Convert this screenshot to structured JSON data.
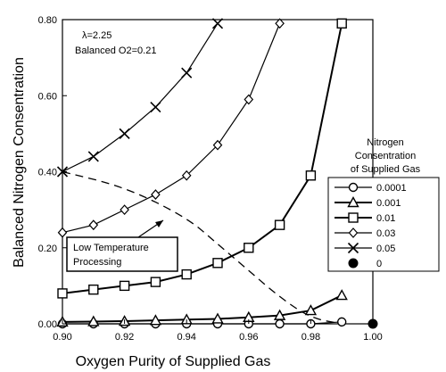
{
  "chart_data": {
    "type": "line",
    "xlabel": "Oxygen Purity of Supplied Gas",
    "ylabel": "Balanced Nitrogen Consentration",
    "xlim": [
      0.9,
      1.0
    ],
    "ylim": [
      0.0,
      0.8
    ],
    "xticks": [
      "0.90",
      "0.92",
      "0.94",
      "0.96",
      "0.98",
      "1.00"
    ],
    "yticks": [
      "0.00",
      "0.20",
      "0.40",
      "0.60",
      "0.80"
    ],
    "annotation": {
      "line1": "λ=2.25",
      "line2": "Balanced O2=0.21"
    },
    "callout": {
      "line1": "Low Temperature",
      "line2": "Processing"
    },
    "legend": {
      "title": [
        "Nitrogen",
        "Consentration",
        "of Supplied Gas"
      ],
      "placement": "right"
    },
    "series": [
      {
        "name": "0.0001",
        "marker": "circle-open",
        "color": "#000000",
        "x": [
          0.9,
          0.91,
          0.92,
          0.93,
          0.94,
          0.95,
          0.96,
          0.97,
          0.98,
          0.99
        ],
        "y": [
          0.0,
          0.0,
          0.0,
          0.0,
          0.0,
          0.0,
          0.0,
          0.0,
          0.0,
          0.005
        ]
      },
      {
        "name": "0.001",
        "marker": "triangle-open",
        "color": "#000000",
        "x": [
          0.9,
          0.91,
          0.92,
          0.93,
          0.94,
          0.95,
          0.96,
          0.97,
          0.98,
          0.99
        ],
        "y": [
          0.005,
          0.006,
          0.007,
          0.009,
          0.011,
          0.013,
          0.017,
          0.022,
          0.035,
          0.075
        ]
      },
      {
        "name": "0.01",
        "marker": "square-open",
        "color": "#000000",
        "x": [
          0.9,
          0.91,
          0.92,
          0.93,
          0.94,
          0.95,
          0.96,
          0.97,
          0.98,
          0.99
        ],
        "y": [
          0.08,
          0.09,
          0.1,
          0.11,
          0.13,
          0.16,
          0.2,
          0.26,
          0.39,
          0.79
        ]
      },
      {
        "name": "0.03",
        "marker": "diamond-open",
        "color": "#000000",
        "x": [
          0.9,
          0.91,
          0.92,
          0.93,
          0.94,
          0.95,
          0.96,
          0.97
        ],
        "y": [
          0.24,
          0.26,
          0.3,
          0.34,
          0.39,
          0.47,
          0.59,
          0.79
        ]
      },
      {
        "name": "0.05",
        "marker": "x",
        "color": "#000000",
        "x": [
          0.9,
          0.91,
          0.92,
          0.93,
          0.94,
          0.95
        ],
        "y": [
          0.4,
          0.44,
          0.5,
          0.57,
          0.66,
          0.79
        ]
      },
      {
        "name": "0",
        "marker": "circle-filled",
        "color": "#000000",
        "x": [
          1.0
        ],
        "y": [
          0.0
        ]
      }
    ],
    "boundary": {
      "style": "dashed",
      "x": [
        0.9,
        0.92,
        0.94,
        0.95,
        0.96,
        0.97,
        0.98,
        0.99
      ],
      "y": [
        0.4,
        0.36,
        0.28,
        0.21,
        0.14,
        0.07,
        0.015,
        0.0
      ]
    }
  }
}
